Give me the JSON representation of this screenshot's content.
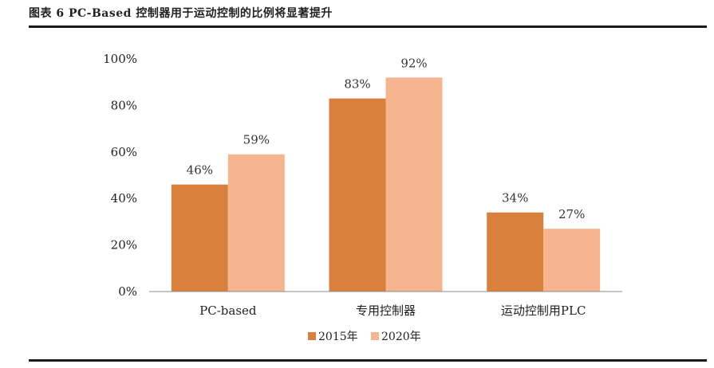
{
  "figure_title": "图表 6   PC-Based 控制器用于运动控制的比例将显著提升",
  "colors": {
    "s2015": "#d9803c",
    "s2020": "#f7b58f",
    "axis": "#8c8c8c",
    "rule": "#1a1a1a"
  },
  "chart_data": {
    "type": "bar",
    "categories": [
      "PC-based",
      "专用控制器",
      "运动控制用PLC"
    ],
    "series": [
      {
        "name": "2015年",
        "values": [
          46,
          83,
          34
        ],
        "labels": [
          "46%",
          "83%",
          "34%"
        ]
      },
      {
        "name": "2020年",
        "values": [
          59,
          92,
          27
        ],
        "labels": [
          "59%",
          "92%",
          "27%"
        ]
      }
    ],
    "ylim": [
      0,
      100
    ],
    "yticks": [
      "0%",
      "20%",
      "40%",
      "60%",
      "80%",
      "100%"
    ],
    "grid": false,
    "legend": "bottom"
  }
}
